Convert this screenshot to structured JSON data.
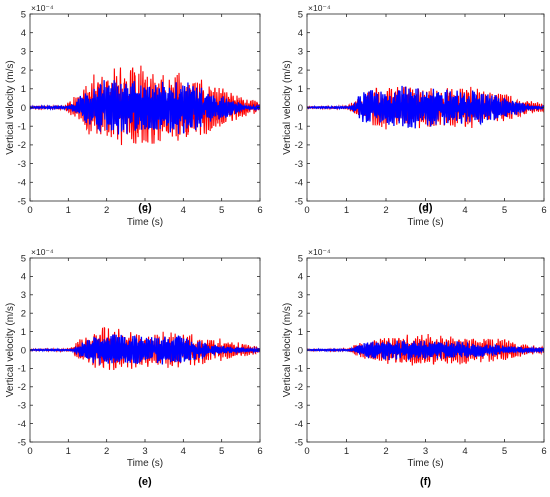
{
  "chart_data": [
    {
      "type": "line",
      "panel_label": "(c)",
      "xlabel": "Time (s)",
      "ylabel": "Vertical velocity (m/s)",
      "exponent_label": "×10⁻⁴",
      "xlim": [
        0,
        6
      ],
      "ylim": [
        -5,
        5
      ],
      "x_ticks": [
        "0",
        "1",
        "2",
        "3",
        "4",
        "5",
        "6"
      ],
      "y_ticks": [
        "5",
        "4",
        "3",
        "2",
        "1",
        "0",
        "-1",
        "-2",
        "-3",
        "-4",
        "-5"
      ],
      "grid": false,
      "signal_window_s": [
        1.0,
        5.7
      ],
      "series": [
        {
          "color": "#ff0000",
          "envelope": [
            [
              0,
              0.08
            ],
            [
              0.9,
              0.1
            ],
            [
              1.2,
              0.7
            ],
            [
              1.7,
              1.9
            ],
            [
              2.5,
              2.2
            ],
            [
              3.0,
              2.4
            ],
            [
              3.5,
              2.0
            ],
            [
              4.0,
              1.9
            ],
            [
              4.5,
              1.6
            ],
            [
              5.0,
              1.1
            ],
            [
              5.5,
              0.6
            ],
            [
              6.0,
              0.3
            ]
          ]
        },
        {
          "color": "#0000ff",
          "envelope": [
            [
              0,
              0.05
            ],
            [
              1.0,
              0.08
            ],
            [
              1.3,
              0.6
            ],
            [
              2.0,
              1.6
            ],
            [
              3.0,
              1.5
            ],
            [
              4.0,
              1.5
            ],
            [
              4.8,
              0.8
            ],
            [
              5.7,
              0.1
            ]
          ]
        }
      ]
    },
    {
      "type": "line",
      "panel_label": "(d)",
      "xlabel": "Time (s)",
      "ylabel": "Vertical velocity (m/s)",
      "exponent_label": "×10⁻⁴",
      "xlim": [
        0,
        6
      ],
      "ylim": [
        -5,
        5
      ],
      "x_ticks": [
        "0",
        "1",
        "2",
        "3",
        "4",
        "5",
        "6"
      ],
      "y_ticks": [
        "5",
        "4",
        "3",
        "2",
        "1",
        "0",
        "-1",
        "-2",
        "-3",
        "-4",
        "-5"
      ],
      "grid": false,
      "signal_window_s": [
        1.0,
        5.7
      ],
      "series": [
        {
          "color": "#ff0000",
          "envelope": [
            [
              0,
              0.06
            ],
            [
              1.0,
              0.08
            ],
            [
              1.3,
              0.5
            ],
            [
              1.8,
              1.2
            ],
            [
              3.0,
              1.1
            ],
            [
              4.0,
              1.2
            ],
            [
              5.0,
              0.8
            ],
            [
              5.6,
              0.4
            ],
            [
              6.0,
              0.2
            ]
          ]
        },
        {
          "color": "#0000ff",
          "envelope": [
            [
              0,
              0.04
            ],
            [
              1.1,
              0.06
            ],
            [
              1.4,
              0.9
            ],
            [
              2.5,
              1.2
            ],
            [
              3.5,
              1.0
            ],
            [
              4.5,
              0.9
            ],
            [
              5.3,
              0.4
            ],
            [
              5.7,
              0.1
            ]
          ]
        }
      ]
    },
    {
      "type": "line",
      "panel_label": "(e)",
      "xlabel": "Time (s)",
      "ylabel": "Vertical velocity (m/s)",
      "exponent_label": "×10⁻⁴",
      "xlim": [
        0,
        6
      ],
      "ylim": [
        -5,
        5
      ],
      "x_ticks": [
        "0",
        "1",
        "2",
        "3",
        "4",
        "5",
        "6"
      ],
      "y_ticks": [
        "5",
        "4",
        "3",
        "2",
        "1",
        "0",
        "-1",
        "-2",
        "-3",
        "-4",
        "-5"
      ],
      "grid": false,
      "signal_window_s": [
        1.0,
        5.7
      ],
      "series": [
        {
          "color": "#ff0000",
          "envelope": [
            [
              0,
              0.05
            ],
            [
              1.0,
              0.07
            ],
            [
              1.3,
              0.6
            ],
            [
              1.9,
              1.3
            ],
            [
              2.5,
              1.1
            ],
            [
              3.0,
              1.0
            ],
            [
              4.0,
              1.0
            ],
            [
              4.8,
              0.7
            ],
            [
              5.5,
              0.4
            ],
            [
              6.0,
              0.2
            ]
          ]
        },
        {
          "color": "#0000ff",
          "envelope": [
            [
              0,
              0.04
            ],
            [
              1.1,
              0.05
            ],
            [
              1.4,
              0.6
            ],
            [
              2.0,
              0.9
            ],
            [
              3.0,
              0.8
            ],
            [
              4.0,
              0.8
            ],
            [
              4.8,
              0.3
            ],
            [
              5.7,
              0.1
            ]
          ]
        }
      ]
    },
    {
      "type": "line",
      "panel_label": "(f)",
      "xlabel": "Time (s)",
      "ylabel": "Vertical velocity (m/s)",
      "exponent_label": "×10⁻⁴",
      "xlim": [
        0,
        6
      ],
      "ylim": [
        -5,
        5
      ],
      "x_ticks": [
        "0",
        "1",
        "2",
        "3",
        "4",
        "5",
        "6"
      ],
      "y_ticks": [
        "5",
        "4",
        "3",
        "2",
        "1",
        "0",
        "-1",
        "-2",
        "-3",
        "-4",
        "-5"
      ],
      "grid": false,
      "signal_window_s": [
        1.0,
        5.7
      ],
      "series": [
        {
          "color": "#ff0000",
          "envelope": [
            [
              0,
              0.05
            ],
            [
              1.0,
              0.06
            ],
            [
              1.3,
              0.4
            ],
            [
              2.0,
              0.8
            ],
            [
              3.0,
              0.9
            ],
            [
              4.0,
              0.8
            ],
            [
              5.0,
              0.6
            ],
            [
              5.6,
              0.3
            ],
            [
              6.0,
              0.15
            ]
          ]
        },
        {
          "color": "#0000ff",
          "envelope": [
            [
              0,
              0.04
            ],
            [
              1.1,
              0.05
            ],
            [
              1.4,
              0.4
            ],
            [
              2.0,
              0.6
            ],
            [
              3.0,
              0.5
            ],
            [
              4.0,
              0.5
            ],
            [
              4.8,
              0.3
            ],
            [
              5.7,
              0.1
            ]
          ]
        }
      ]
    }
  ]
}
